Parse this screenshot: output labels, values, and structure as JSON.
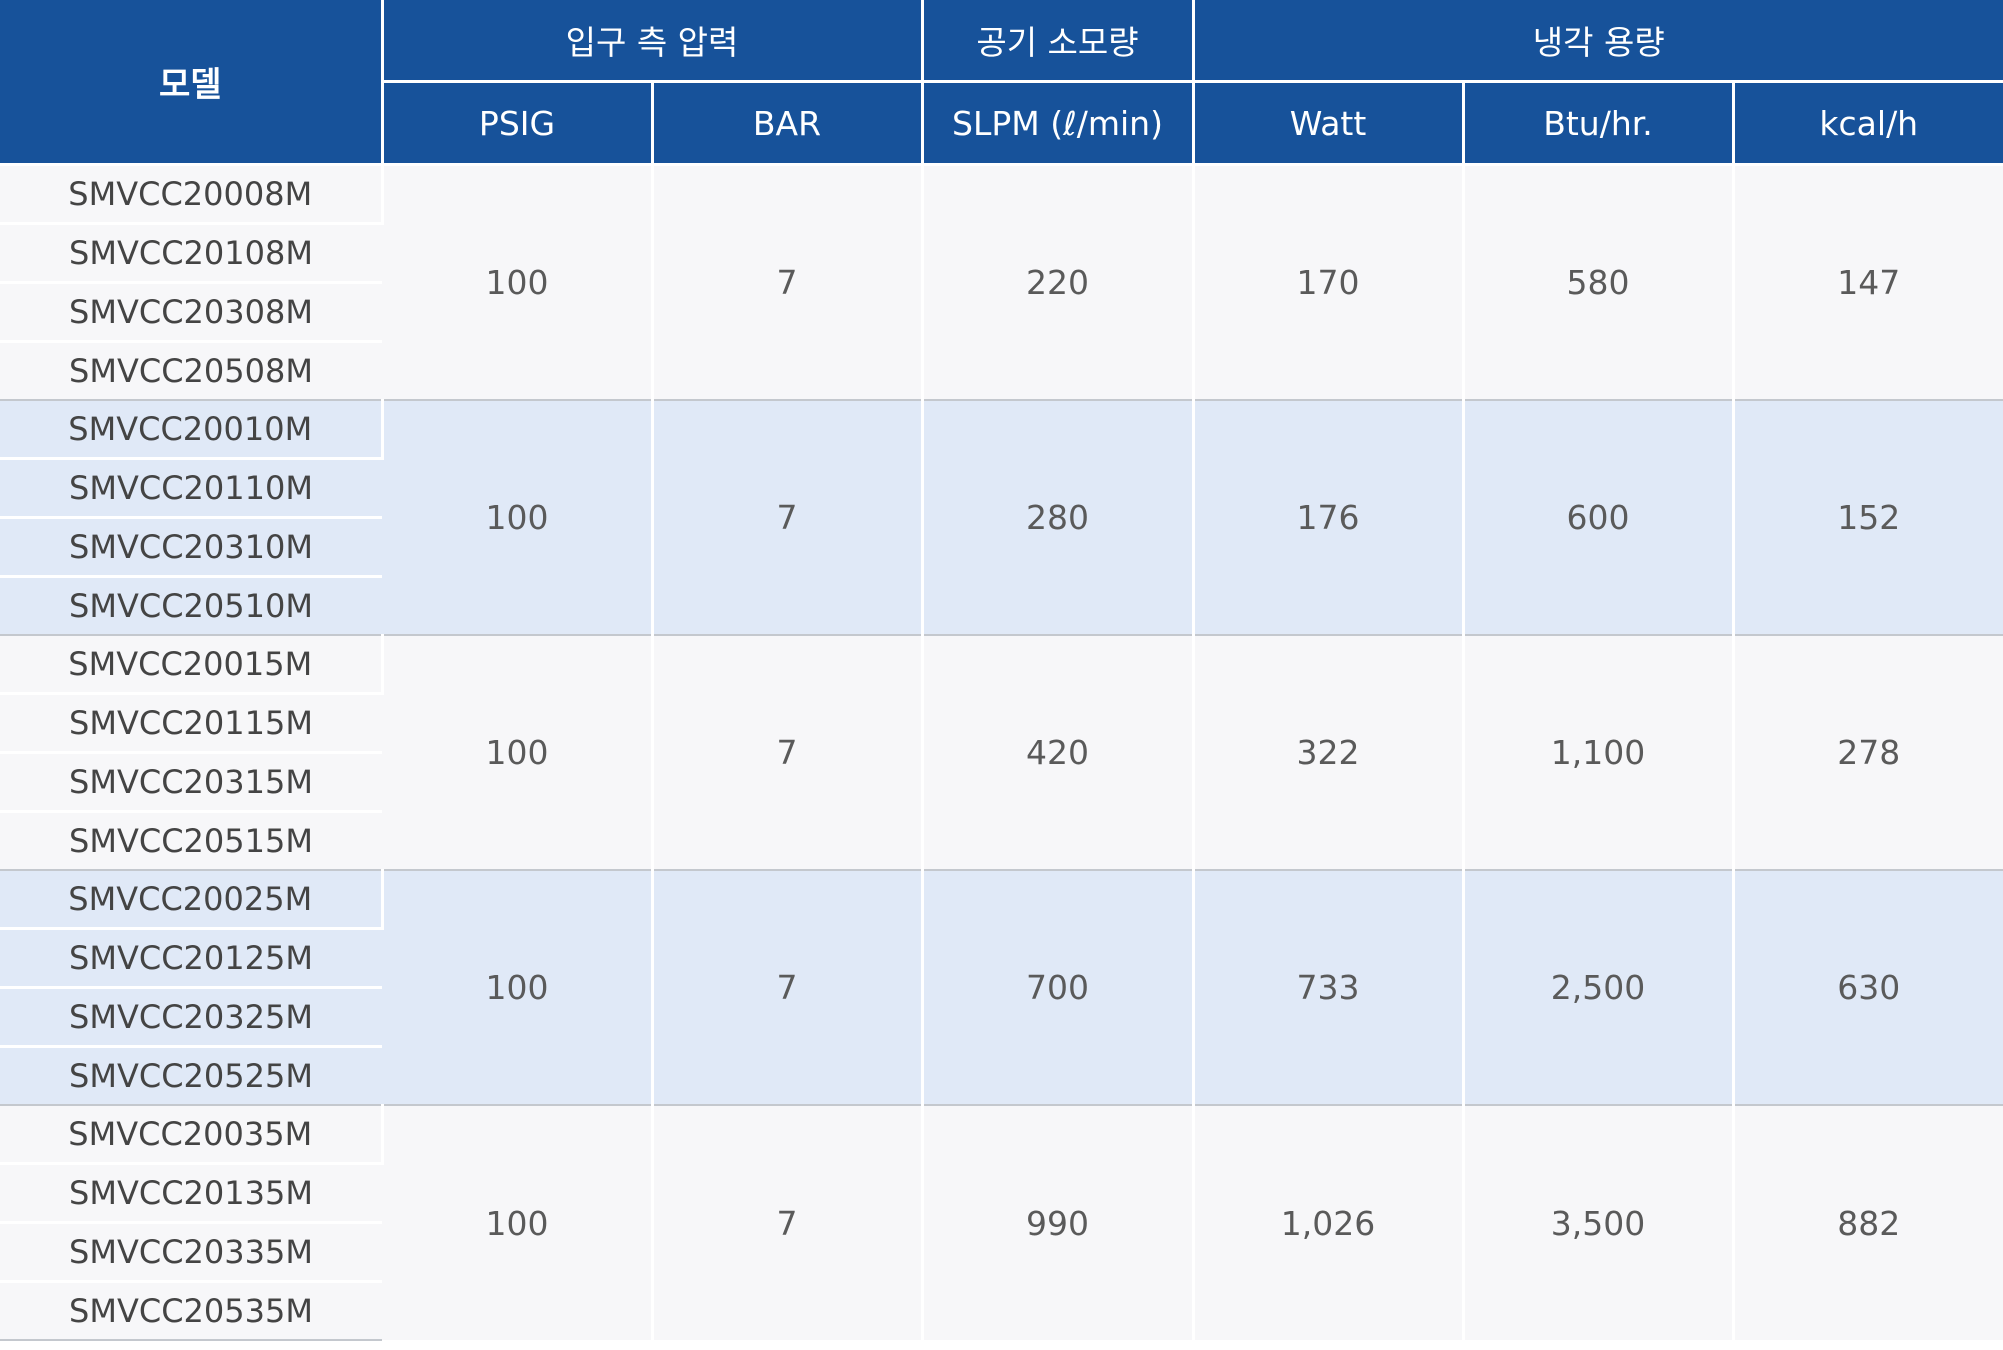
{
  "header": {
    "model": "모델",
    "group_inlet_pressure": "입구 측 압력",
    "group_air_consumption": "공기 소모량",
    "group_cooling_capacity": "냉각 용량",
    "psig": "PSIG",
    "bar": "BAR",
    "slpm": "SLPM (ℓ/min)",
    "watt": "Watt",
    "btu": "Btu/hr.",
    "kcal": "kcal/h"
  },
  "groups": [
    {
      "models": [
        "SMVCC20008M",
        "SMVCC20108M",
        "SMVCC20308M",
        "SMVCC20508M"
      ],
      "psig": "100",
      "bar": "7",
      "slpm": "220",
      "watt": "170",
      "btu": "580",
      "kcal": "147"
    },
    {
      "models": [
        "SMVCC20010M",
        "SMVCC20110M",
        "SMVCC20310M",
        "SMVCC20510M"
      ],
      "psig": "100",
      "bar": "7",
      "slpm": "280",
      "watt": "176",
      "btu": "600",
      "kcal": "152"
    },
    {
      "models": [
        "SMVCC20015M",
        "SMVCC20115M",
        "SMVCC20315M",
        "SMVCC20515M"
      ],
      "psig": "100",
      "bar": "7",
      "slpm": "420",
      "watt": "322",
      "btu": "1,100",
      "kcal": "278"
    },
    {
      "models": [
        "SMVCC20025M",
        "SMVCC20125M",
        "SMVCC20325M",
        "SMVCC20525M"
      ],
      "psig": "100",
      "bar": "7",
      "slpm": "700",
      "watt": "733",
      "btu": "2,500",
      "kcal": "630"
    },
    {
      "models": [
        "SMVCC20035M",
        "SMVCC20135M",
        "SMVCC20335M",
        "SMVCC20535M"
      ],
      "psig": "100",
      "bar": "7",
      "slpm": "990",
      "watt": "1,026",
      "btu": "3,500",
      "kcal": "882"
    }
  ],
  "colors": {
    "header_bg": "#17529a",
    "row_light": "#f7f7f9",
    "row_blue": "#e0e9f7"
  }
}
